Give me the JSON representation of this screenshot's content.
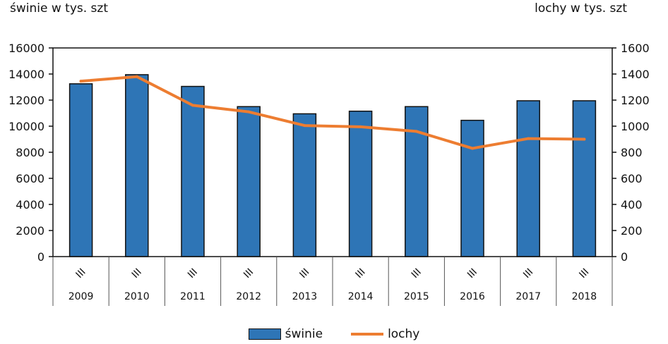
{
  "chart_data": {
    "type": "bar",
    "left_axis_title": "świnie w tys. szt",
    "right_axis_title": "lochy w tys. szt",
    "period_label": "III",
    "categories": [
      "2009",
      "2010",
      "2011",
      "2012",
      "2013",
      "2014",
      "2015",
      "2016",
      "2017",
      "2018"
    ],
    "series": [
      {
        "name": "świnie",
        "type": "bar",
        "axis": "left",
        "color": "#2e75b6",
        "values": [
          13250,
          13950,
          13050,
          11500,
          10950,
          11150,
          11500,
          10450,
          11950,
          11950
        ]
      },
      {
        "name": "lochy",
        "type": "line",
        "axis": "right",
        "color": "#ed7d31",
        "values": [
          1345,
          1380,
          1160,
          1110,
          1005,
          995,
          960,
          830,
          905,
          900
        ]
      }
    ],
    "left_axis": {
      "min": 0,
      "max": 16000,
      "step": 2000,
      "ticks": [
        "0",
        "2000",
        "4000",
        "6000",
        "8000",
        "10000",
        "12000",
        "14000",
        "16000"
      ]
    },
    "right_axis": {
      "min": 0,
      "max": 1600,
      "step": 200,
      "ticks": [
        "0",
        "200",
        "400",
        "600",
        "800",
        "1000",
        "1200",
        "1400",
        "1600"
      ]
    },
    "grid": false,
    "legend_position": "bottom"
  }
}
